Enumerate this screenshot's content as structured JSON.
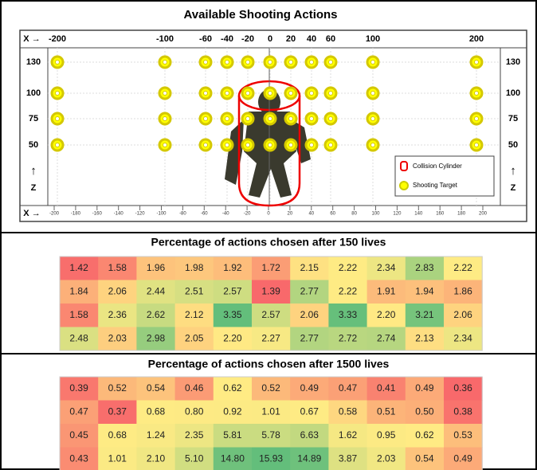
{
  "panel": {
    "title": "Available Shooting Actions",
    "x_axis_label": "X →",
    "x_positions": [
      "-200",
      "-100",
      "-60",
      "-40",
      "-20",
      "0",
      "20",
      "40",
      "60",
      "100",
      "200"
    ],
    "z_positions": [
      "130",
      "100",
      "75",
      "50"
    ],
    "z_arrow": "↑",
    "z_axis_label": "Z",
    "legend": {
      "cylinder": "Collision Cylinder",
      "target": "Shooting Target"
    },
    "ruler_label": "X →",
    "ruler_ticks": [
      "-200",
      "-180",
      "-160",
      "-140",
      "-120",
      "-100",
      "-80",
      "-60",
      "-40",
      "-20",
      "0",
      "20",
      "40",
      "60",
      "80",
      "100",
      "120",
      "140",
      "160",
      "180",
      "200"
    ]
  },
  "table1": {
    "title": "Percentage of actions chosen after 150 lives",
    "rows": [
      [
        "1.42",
        "1.58",
        "1.96",
        "1.98",
        "1.92",
        "1.72",
        "2.15",
        "2.22",
        "2.34",
        "2.83",
        "2.22"
      ],
      [
        "1.84",
        "2.06",
        "2.44",
        "2.51",
        "2.57",
        "1.39",
        "2.77",
        "2.22",
        "1.91",
        "1.94",
        "1.86"
      ],
      [
        "1.58",
        "2.36",
        "2.62",
        "2.12",
        "3.35",
        "2.57",
        "2.06",
        "3.33",
        "2.20",
        "3.21",
        "2.06"
      ],
      [
        "2.48",
        "2.03",
        "2.98",
        "2.05",
        "2.20",
        "2.27",
        "2.77",
        "2.72",
        "2.74",
        "2.13",
        "2.34"
      ]
    ]
  },
  "table2": {
    "title": "Percentage of actions chosen after 1500 lives",
    "rows": [
      [
        "0.39",
        "0.52",
        "0.54",
        "0.46",
        "0.62",
        "0.52",
        "0.49",
        "0.47",
        "0.41",
        "0.49",
        "0.36"
      ],
      [
        "0.47",
        "0.37",
        "0.68",
        "0.80",
        "0.92",
        "1.01",
        "0.67",
        "0.58",
        "0.51",
        "0.50",
        "0.38"
      ],
      [
        "0.45",
        "0.68",
        "1.24",
        "2.35",
        "5.81",
        "5.78",
        "6.63",
        "1.62",
        "0.95",
        "0.62",
        "0.53"
      ],
      [
        "0.43",
        "1.01",
        "2.10",
        "5.10",
        "14.80",
        "15.93",
        "14.89",
        "3.87",
        "2.03",
        "0.54",
        "0.49"
      ]
    ]
  }
}
